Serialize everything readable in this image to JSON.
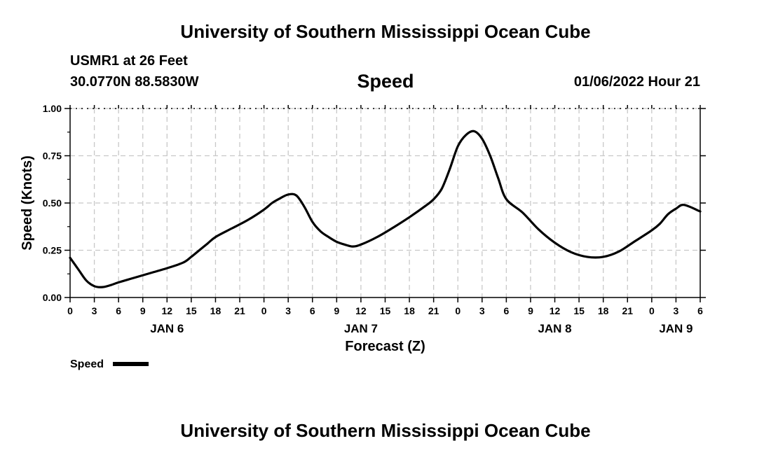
{
  "header": {
    "title": "University of Southern Mississippi Ocean Cube",
    "station": "USMR1 at 26 Feet",
    "coordinates": "30.0770N  88.5830W",
    "chart_title": "Speed",
    "datetime": "01/06/2022 Hour 21"
  },
  "footer": {
    "title": "University of Southern Mississippi Ocean Cube"
  },
  "chart_data": {
    "type": "line",
    "title": "Speed",
    "xlabel": "Forecast (Z)",
    "ylabel": "Speed (Knots)",
    "xlim": [
      0,
      78
    ],
    "ylim": [
      0,
      1
    ],
    "y_ticks": [
      0,
      0.25,
      0.5,
      0.75,
      1.0
    ],
    "y_tick_labels": [
      "0.00",
      "0.25",
      "0.50",
      "0.75",
      "1.00"
    ],
    "x_ticks": [
      0,
      3,
      6,
      9,
      12,
      15,
      18,
      21,
      24,
      27,
      30,
      33,
      36,
      39,
      42,
      45,
      48,
      51,
      54,
      57,
      60,
      63,
      66,
      69,
      72,
      75,
      78
    ],
    "x_tick_labels": [
      "0",
      "3",
      "6",
      "9",
      "12",
      "15",
      "18",
      "21",
      "0",
      "3",
      "6",
      "9",
      "12",
      "15",
      "18",
      "21",
      "0",
      "3",
      "6",
      "9",
      "12",
      "15",
      "18",
      "21",
      "0",
      "3",
      "6"
    ],
    "day_labels": [
      {
        "label": "JAN 6",
        "x": 12
      },
      {
        "label": "JAN 7",
        "x": 36
      },
      {
        "label": "JAN 8",
        "x": 60
      },
      {
        "label": "JAN 9",
        "x": 75
      }
    ],
    "grid": true,
    "legend": "bottom-left",
    "series": [
      {
        "name": "Speed",
        "color": "#000000",
        "x": [
          0,
          1,
          2,
          3,
          4,
          5,
          6,
          8,
          10,
          12,
          14,
          15,
          16,
          17,
          18,
          20,
          22,
          24,
          25,
          26,
          27,
          28,
          29,
          30,
          31,
          32,
          33,
          34,
          35,
          36,
          38,
          40,
          42,
          44,
          45,
          46,
          47,
          48,
          49,
          50,
          51,
          52,
          53,
          54,
          56,
          58,
          60,
          62,
          64,
          66,
          68,
          70,
          72,
          73,
          74,
          75,
          76,
          78
        ],
        "values": [
          0.21,
          0.15,
          0.09,
          0.06,
          0.055,
          0.065,
          0.08,
          0.105,
          0.13,
          0.155,
          0.185,
          0.215,
          0.25,
          0.285,
          0.32,
          0.365,
          0.41,
          0.465,
          0.5,
          0.525,
          0.545,
          0.54,
          0.48,
          0.4,
          0.35,
          0.32,
          0.295,
          0.28,
          0.27,
          0.28,
          0.32,
          0.37,
          0.425,
          0.485,
          0.52,
          0.575,
          0.68,
          0.8,
          0.86,
          0.88,
          0.84,
          0.75,
          0.63,
          0.52,
          0.45,
          0.36,
          0.29,
          0.24,
          0.215,
          0.215,
          0.245,
          0.3,
          0.355,
          0.39,
          0.44,
          0.47,
          0.49,
          0.455
        ]
      }
    ]
  }
}
